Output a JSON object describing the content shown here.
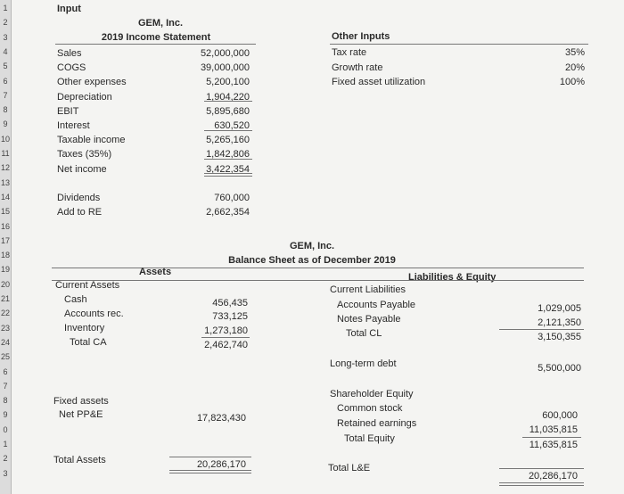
{
  "row_numbers": [
    "1",
    "2",
    "3",
    "4",
    "5",
    "6",
    "7",
    "8",
    "9",
    "10",
    "11",
    "12",
    "13",
    "14",
    "15",
    "16",
    "17",
    "18",
    "19",
    "20",
    "21",
    "22",
    "23",
    "24",
    "25",
    "6",
    "7",
    "8",
    "9",
    "0",
    "1",
    "2",
    "3"
  ],
  "input_label": "Input",
  "income": {
    "company": "GEM, Inc.",
    "title": "2019 Income Statement",
    "rows": [
      {
        "label": "Sales",
        "value": "52,000,000"
      },
      {
        "label": "COGS",
        "value": "39,000,000"
      },
      {
        "label": "Other expenses",
        "value": "5,200,100"
      },
      {
        "label": "Depreciation",
        "value": "1,904,220"
      },
      {
        "label": "EBIT",
        "value": "5,895,680"
      },
      {
        "label": "Interest",
        "value": "630,520"
      },
      {
        "label": "Taxable income",
        "value": "5,265,160"
      },
      {
        "label": "Taxes (35%)",
        "value": "1,842,806"
      },
      {
        "label": "Net income",
        "value": "3,422,354"
      }
    ],
    "dividends_label": "Dividends",
    "dividends_value": "760,000",
    "add_re_label": "Add to RE",
    "add_re_value": "2,662,354"
  },
  "other_inputs": {
    "title": "Other Inputs",
    "rows": [
      {
        "label": "Tax rate",
        "value": "35%"
      },
      {
        "label": "Growth rate",
        "value": "20%"
      },
      {
        "label": "Fixed asset utilization",
        "value": "100%"
      }
    ]
  },
  "balance": {
    "company": "GEM, Inc.",
    "title": "Balance Sheet as of December 2019",
    "assets_header": "Assets",
    "liab_header": "Liabilities & Equity",
    "current_assets_label": "Current Assets",
    "cash_label": "Cash",
    "cash_value": "456,435",
    "ar_label": "Accounts rec.",
    "ar_value": "733,125",
    "inv_label": "Inventory",
    "inv_value": "1,273,180",
    "tca_label": "Total CA",
    "tca_value": "2,462,740",
    "fixed_assets_label": "Fixed assets",
    "ppe_label": "Net PP&E",
    "ppe_value": "17,823,430",
    "total_assets_label": "Total Assets",
    "total_assets_value": "20,286,170",
    "current_liab_label": "Current Liabilities",
    "ap_label": "Accounts Payable",
    "ap_value": "1,029,005",
    "np_label": "Notes Payable",
    "np_value": "2,121,350",
    "tcl_label": "Total CL",
    "tcl_value": "3,150,355",
    "ltd_label": "Long-term debt",
    "ltd_value": "5,500,000",
    "se_label": "Shareholder Equity",
    "cs_label": "Common stock",
    "cs_value": "600,000",
    "re_label": "Retained earnings",
    "re_value": "11,035,815",
    "te_label": "Total Equity",
    "te_value": "11,635,815",
    "tle_label": "Total L&E",
    "tle_value": "20,286,170"
  }
}
